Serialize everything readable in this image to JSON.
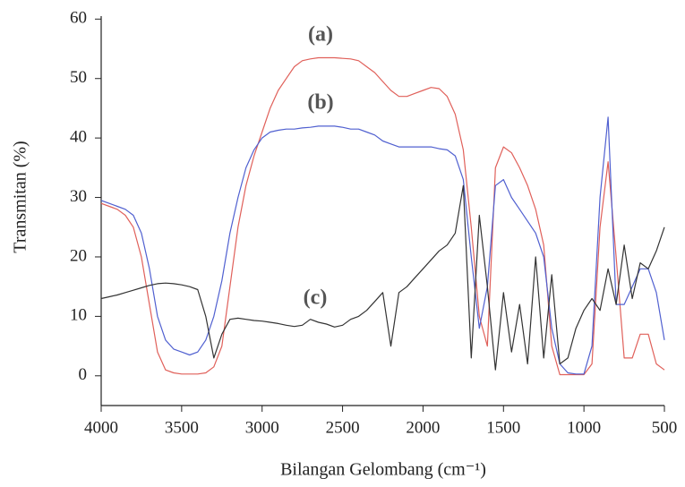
{
  "chart_data": {
    "type": "line",
    "y_label": "Transmitan (%)",
    "x_label": "Bilangan Gelombang (cm⁻¹)",
    "annotations": [
      "(a)",
      "(b)",
      "(c)"
    ],
    "xlim": [
      4000,
      500
    ],
    "xticks": [
      4000,
      3500,
      3000,
      2500,
      2000,
      1500,
      1000,
      500
    ],
    "ylim": [
      -5,
      60.5
    ],
    "yticks": [
      0,
      10,
      20,
      30,
      40,
      50,
      60
    ],
    "x": [
      4000,
      3950,
      3900,
      3850,
      3800,
      3750,
      3700,
      3650,
      3600,
      3550,
      3500,
      3450,
      3400,
      3350,
      3300,
      3250,
      3200,
      3150,
      3100,
      3050,
      3000,
      2950,
      2900,
      2850,
      2800,
      2750,
      2700,
      2650,
      2600,
      2550,
      2500,
      2450,
      2400,
      2350,
      2300,
      2250,
      2200,
      2150,
      2100,
      2050,
      2000,
      1950,
      1900,
      1850,
      1800,
      1750,
      1700,
      1650,
      1600,
      1550,
      1500,
      1450,
      1400,
      1350,
      1300,
      1250,
      1200,
      1150,
      1100,
      1050,
      1000,
      950,
      900,
      850,
      800,
      750,
      700,
      650,
      600,
      550,
      500
    ],
    "series": [
      {
        "name": "(a)",
        "color": "#e0605a",
        "values": [
          29,
          28.5,
          28,
          27,
          25,
          20,
          12,
          4,
          1,
          0.5,
          0.3,
          0.3,
          0.3,
          0.5,
          1.5,
          5,
          15,
          25,
          32,
          37,
          41,
          45,
          48,
          50,
          52,
          53,
          53.3,
          53.5,
          53.5,
          53.5,
          53.4,
          53.3,
          53,
          52,
          51,
          49.5,
          48,
          47,
          47,
          47.5,
          48,
          48.5,
          48.3,
          47,
          44,
          38,
          25,
          10,
          5,
          35,
          38.5,
          37.5,
          35,
          32,
          28,
          22,
          5,
          0.2,
          0.2,
          0.2,
          0.2,
          2,
          25,
          36,
          20,
          3,
          3,
          7,
          7,
          2,
          1
        ]
      },
      {
        "name": "(b)",
        "color": "#5060d0",
        "values": [
          29.5,
          29,
          28.5,
          28,
          27,
          24,
          18,
          10,
          6,
          4.5,
          4,
          3.5,
          4,
          6,
          10,
          16,
          24,
          30,
          35,
          38,
          40,
          41,
          41.3,
          41.5,
          41.5,
          41.7,
          41.8,
          42,
          42,
          42,
          41.8,
          41.5,
          41.5,
          41,
          40.5,
          39.5,
          39,
          38.5,
          38.5,
          38.5,
          38.5,
          38.5,
          38.2,
          38,
          37,
          33,
          20,
          8,
          15,
          32,
          33,
          30,
          28,
          26,
          24,
          20,
          8,
          2,
          0.5,
          0.3,
          0.3,
          5,
          30,
          43.5,
          12,
          12,
          15,
          18,
          18,
          14,
          6
        ]
      },
      {
        "name": "(c)",
        "color": "#333333",
        "values": [
          13,
          13.3,
          13.6,
          14,
          14.4,
          14.8,
          15.2,
          15.5,
          15.6,
          15.5,
          15.3,
          15,
          14.5,
          10,
          3,
          7,
          9.5,
          9.7,
          9.5,
          9.3,
          9.2,
          9,
          8.8,
          8.5,
          8.3,
          8.5,
          9.5,
          9,
          8.7,
          8.2,
          8.5,
          9.5,
          10,
          11,
          12.5,
          14,
          5,
          14,
          15,
          16.5,
          18,
          19.5,
          21,
          22,
          24,
          32,
          3,
          27,
          15,
          1,
          14,
          4,
          12,
          2,
          20,
          3,
          17,
          2,
          3,
          8,
          11,
          13,
          11,
          18,
          12,
          22,
          13,
          19,
          18,
          21,
          25
        ]
      }
    ]
  }
}
